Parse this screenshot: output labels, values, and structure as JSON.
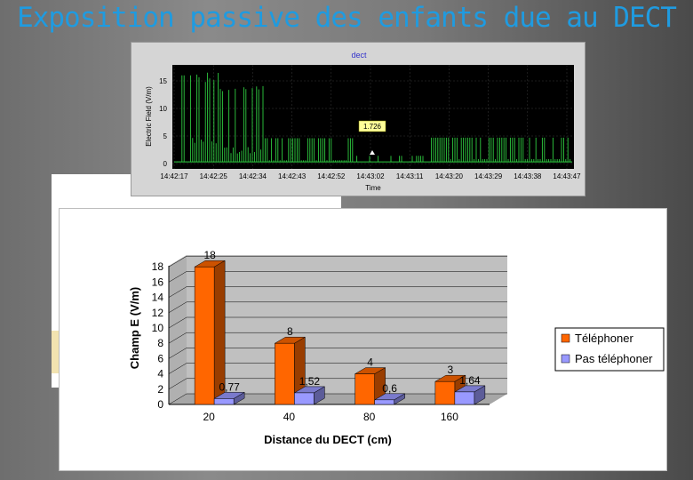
{
  "slide": {
    "title": "Exposition passive des enfants due au DECT"
  },
  "colors": {
    "title": "#1f9be0",
    "signal": "#2ecc40",
    "series1": "#ff6600",
    "series2": "#9999ff",
    "plot_wall": "#c0c0c0"
  },
  "chart_data": [
    {
      "type": "line",
      "title": "dect",
      "xlabel": "Time",
      "ylabel": "Electric Field (V/m)",
      "ylim": [
        0,
        18
      ],
      "yticks": [
        "0",
        "5",
        "10",
        "15"
      ],
      "xticks": [
        "14:42:17",
        "14:42:25",
        "14:42:34",
        "14:42:43",
        "14:42:52",
        "14:43:02",
        "14:43:11",
        "14:43:20",
        "14:43:29",
        "14:43:38",
        "14:43:47"
      ],
      "annotation": {
        "label": "1.726",
        "x": "14:43:02",
        "y": 1.726
      },
      "grid": true,
      "background": "black"
    },
    {
      "type": "bar",
      "categories": [
        "20",
        "40",
        "80",
        "160"
      ],
      "series": [
        {
          "name": "Téléphoner",
          "values": [
            18,
            8,
            4,
            3
          ],
          "labels": [
            "18",
            "8",
            "4",
            "3"
          ]
        },
        {
          "name": "Pas téléphoner",
          "values": [
            0.77,
            1.52,
            0.6,
            1.64
          ],
          "labels": [
            "0,77",
            "1,52",
            "0,6",
            "1,64"
          ]
        }
      ],
      "xlabel": "Distance du DECT (cm)",
      "ylabel": "Champ E (V/m)",
      "ylim": [
        0,
        18
      ],
      "yticks": [
        "0",
        "2",
        "4",
        "6",
        "8",
        "10",
        "12",
        "14",
        "16",
        "18"
      ],
      "legend": "right",
      "style": "3d"
    }
  ]
}
